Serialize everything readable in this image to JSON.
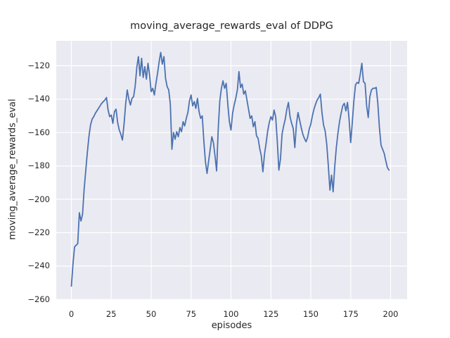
{
  "figure": {
    "title": "moving_average_rewards_eval of DDPG",
    "xlabel": "episodes",
    "ylabel": "moving_average_rewards_eval"
  },
  "chart_data": {
    "type": "line",
    "title": "moving_average_rewards_eval of DDPG",
    "xlabel": "episodes",
    "ylabel": "moving_average_rewards_eval",
    "grid": true,
    "legend": false,
    "x_ticks": [
      0,
      25,
      50,
      75,
      100,
      125,
      150,
      175,
      200
    ],
    "y_ticks": [
      -120,
      -140,
      -160,
      -180,
      -200,
      -220,
      -240,
      -260
    ],
    "xlim": [
      -9.47,
      210.35
    ],
    "ylim": [
      -260.1,
      -105.06
    ],
    "style": {
      "fig_bg": "#ffffff",
      "axes_bg": "#eaeaf2",
      "grid_color": "#ffffff",
      "line_color": "#4c72b0",
      "text_color": "#262626"
    },
    "series": [
      {
        "name": "moving_average_rewards_eval",
        "color": "#4c72b0",
        "x_start": 0,
        "x_step": 1,
        "values": [
          -252,
          -239,
          -228.5,
          -227.5,
          -226.5,
          -208,
          -213,
          -209,
          -194,
          -183,
          -172,
          -162.5,
          -155.5,
          -152,
          -150.5,
          -148.5,
          -147,
          -145.5,
          -144,
          -142.5,
          -141.5,
          -140.5,
          -139,
          -146.5,
          -150.5,
          -149.5,
          -154.5,
          -147.5,
          -146,
          -154,
          -158.5,
          -161,
          -164.5,
          -155,
          -143,
          -134.5,
          -140,
          -143.5,
          -139.5,
          -138.5,
          -132,
          -121,
          -114.5,
          -126,
          -115.5,
          -127,
          -120.5,
          -128,
          -118.5,
          -125.5,
          -135.5,
          -133.5,
          -137.5,
          -130.5,
          -124.5,
          -117.5,
          -112,
          -119,
          -114.5,
          -127.5,
          -132.5,
          -134.5,
          -143,
          -170,
          -160,
          -164,
          -159.5,
          -162.5,
          -157,
          -159.5,
          -153.5,
          -156,
          -151.5,
          -148,
          -141,
          -137.5,
          -144,
          -141.5,
          -145.5,
          -139.5,
          -147.5,
          -151.5,
          -150,
          -165,
          -177.5,
          -184.5,
          -177,
          -170,
          -162.5,
          -166,
          -174,
          -183,
          -158,
          -141,
          -133.5,
          -129,
          -133.5,
          -130.5,
          -143,
          -153.5,
          -158.5,
          -148.5,
          -143.5,
          -139.5,
          -134.5,
          -123.5,
          -133,
          -131,
          -137,
          -135,
          -140.5,
          -146,
          -151.5,
          -150,
          -156.5,
          -153.5,
          -162,
          -163.5,
          -169.5,
          -174,
          -183.5,
          -173,
          -166.5,
          -159,
          -154,
          -150.5,
          -152.5,
          -146.5,
          -150.5,
          -165,
          -182.5,
          -176,
          -161,
          -156,
          -152,
          -146,
          -142,
          -150.5,
          -154.5,
          -157.5,
          -169,
          -155,
          -148,
          -152.5,
          -157,
          -161,
          -163.5,
          -165.5,
          -163,
          -158,
          -155,
          -150,
          -146,
          -143,
          -140.5,
          -139,
          -137,
          -148,
          -155.5,
          -159,
          -167,
          -180,
          -194.5,
          -185.5,
          -195.5,
          -180.5,
          -169,
          -160.5,
          -153.5,
          -148.5,
          -144,
          -142.5,
          -147,
          -142,
          -152,
          -166,
          -154,
          -141,
          -131.5,
          -130,
          -130.5,
          -125,
          -118.5,
          -129.5,
          -130.5,
          -144,
          -151,
          -138.5,
          -134.5,
          -133.5,
          -133.5,
          -133,
          -142.5,
          -157,
          -167.5,
          -170,
          -172.5,
          -177,
          -181,
          -182.5
        ]
      }
    ]
  }
}
